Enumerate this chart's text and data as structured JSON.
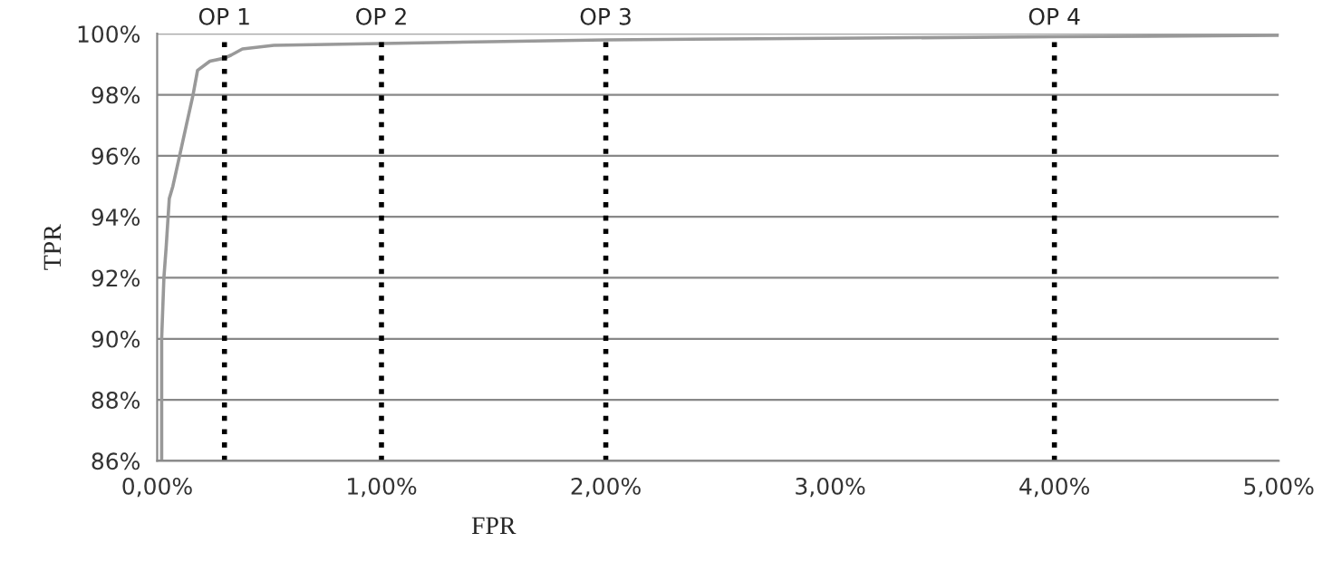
{
  "chart_data": {
    "type": "line",
    "xlabel": "FPR",
    "ylabel": "TPR",
    "x": [
      0.02,
      0.02,
      0.03,
      0.04,
      0.054,
      0.07,
      0.1,
      0.13,
      0.16,
      0.18,
      0.235,
      0.3,
      0.33,
      0.38,
      0.52,
      1.0,
      2.0,
      3.0,
      4.0,
      5.0
    ],
    "series": [
      {
        "color": "#999999",
        "values": [
          86.0,
          90.0,
          92.0,
          93.0,
          94.6,
          95.0,
          96.0,
          97.0,
          98.0,
          98.8,
          99.1,
          99.2,
          99.3,
          99.5,
          99.62,
          99.68,
          99.8,
          99.85,
          99.9,
          99.95
        ]
      }
    ],
    "xlim": [
      0,
      5
    ],
    "ylim": [
      86,
      100
    ],
    "xticks": [
      {
        "value": 0,
        "label": "0,00%"
      },
      {
        "value": 1,
        "label": "1,00%"
      },
      {
        "value": 2,
        "label": "2,00%"
      },
      {
        "value": 3,
        "label": "3,00%"
      },
      {
        "value": 4,
        "label": "4,00%"
      },
      {
        "value": 5,
        "label": "5,00%"
      }
    ],
    "yticks": [
      {
        "value": 86,
        "label": "86%"
      },
      {
        "value": 88,
        "label": "88%"
      },
      {
        "value": 90,
        "label": "90%"
      },
      {
        "value": 92,
        "label": "92%"
      },
      {
        "value": 94,
        "label": "94%"
      },
      {
        "value": 96,
        "label": "96%"
      },
      {
        "value": 98,
        "label": "98%"
      },
      {
        "value": 100,
        "label": "100%"
      }
    ],
    "grid": "y",
    "legend": false,
    "marker": "none",
    "line_style": "solid",
    "ref_lines": [
      {
        "axis": "x",
        "value": 0.3,
        "label": "OP 1",
        "color": "#000000",
        "line_style": "dotted"
      },
      {
        "axis": "x",
        "value": 1.0,
        "label": "OP 2",
        "color": "#000000",
        "line_style": "dotted"
      },
      {
        "axis": "x",
        "value": 2.0,
        "label": "OP 3",
        "color": "#000000",
        "line_style": "dotted"
      },
      {
        "axis": "x",
        "value": 4.0,
        "label": "OP 4",
        "color": "#000000",
        "line_style": "dotted"
      }
    ]
  }
}
